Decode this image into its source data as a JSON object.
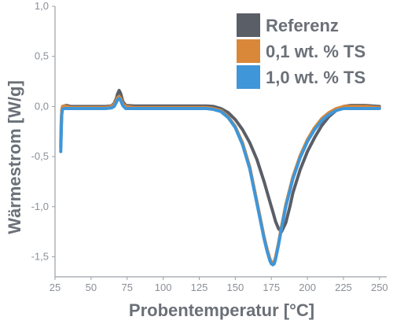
{
  "chart_data": {
    "type": "line",
    "xlabel": "Probentemperatur [°C]",
    "ylabel": "Wärmestrom [W/g]",
    "xlim": [
      25,
      255
    ],
    "ylim": [
      -1.7,
      1.0
    ],
    "xticks": [
      25,
      50,
      75,
      100,
      125,
      150,
      175,
      200,
      225,
      250
    ],
    "xtick_labels": [
      "25",
      "50",
      "75",
      "100",
      "125",
      "150",
      "175",
      "200",
      "225",
      "250"
    ],
    "yticks": [
      1.0,
      0.5,
      0.0,
      -0.5,
      -1.0,
      -1.5
    ],
    "ytick_labels": [
      "1,0",
      "0,5",
      "0,0",
      "-0,5",
      "-1,0",
      "-1,5"
    ],
    "grid": false,
    "legend_position": "top-right",
    "series": [
      {
        "name": "Referenz",
        "color": "#5a5e66",
        "x": [
          29,
          29.3,
          29.7,
          30.2,
          31,
          33,
          36,
          40,
          50,
          60,
          64,
          66,
          67.5,
          68.5,
          69.5,
          70.5,
          72,
          74,
          80,
          100,
          120,
          130,
          135,
          140,
          145,
          150,
          155,
          160,
          165,
          170,
          173,
          176,
          178,
          180,
          182,
          185,
          188,
          190,
          195,
          200,
          205,
          210,
          215,
          220,
          225,
          230,
          240,
          250
        ],
        "y": [
          -0.4,
          -0.2,
          -0.05,
          0.0,
          0.005,
          0.01,
          0.0,
          0.0,
          0.0,
          0.0,
          0.005,
          0.03,
          0.08,
          0.13,
          0.16,
          0.13,
          0.05,
          0.01,
          0.005,
          0.005,
          0.005,
          0.005,
          0.0,
          -0.02,
          -0.06,
          -0.13,
          -0.23,
          -0.36,
          -0.53,
          -0.75,
          -0.9,
          -1.05,
          -1.15,
          -1.22,
          -1.25,
          -1.16,
          -0.99,
          -0.86,
          -0.63,
          -0.45,
          -0.31,
          -0.19,
          -0.1,
          -0.04,
          0.0,
          0.01,
          0.01,
          0.0
        ]
      },
      {
        "name": "0,1 wt. % TS",
        "color": "#d9883a",
        "x": [
          29,
          29.3,
          29.7,
          30.2,
          31,
          33,
          36,
          40,
          50,
          60,
          64,
          66,
          67.5,
          68.5,
          69.5,
          70.5,
          72,
          74,
          80,
          100,
          120,
          130,
          135,
          140,
          145,
          150,
          155,
          160,
          165,
          170,
          172,
          174,
          175,
          176,
          177,
          178,
          180,
          182,
          185,
          190,
          195,
          200,
          205,
          210,
          215,
          220,
          225,
          230,
          240,
          250
        ],
        "y": [
          -0.35,
          -0.15,
          -0.03,
          0.0,
          0.005,
          0.0,
          -0.01,
          -0.01,
          -0.01,
          -0.01,
          0.0,
          0.02,
          0.06,
          0.09,
          0.1,
          0.08,
          0.03,
          0.0,
          -0.01,
          -0.01,
          -0.01,
          -0.01,
          -0.02,
          -0.04,
          -0.1,
          -0.2,
          -0.36,
          -0.6,
          -0.95,
          -1.3,
          -1.42,
          -1.52,
          -1.55,
          -1.56,
          -1.55,
          -1.5,
          -1.36,
          -1.2,
          -0.98,
          -0.7,
          -0.49,
          -0.33,
          -0.21,
          -0.12,
          -0.06,
          -0.02,
          0.0,
          0.0,
          0.0,
          -0.01
        ]
      },
      {
        "name": "1,0 wt. % TS",
        "color": "#3f96d8",
        "x": [
          29,
          29.3,
          29.7,
          30.2,
          31,
          33,
          36,
          40,
          50,
          60,
          64,
          66,
          67.5,
          68.5,
          69.5,
          70.5,
          72,
          74,
          80,
          100,
          120,
          130,
          135,
          140,
          145,
          150,
          155,
          160,
          165,
          170,
          172,
          174,
          175,
          176,
          177,
          178,
          180,
          182,
          185,
          190,
          195,
          200,
          205,
          210,
          215,
          220,
          225,
          230,
          240,
          250
        ],
        "y": [
          -0.45,
          -0.25,
          -0.08,
          -0.03,
          -0.02,
          -0.02,
          -0.02,
          -0.02,
          -0.02,
          -0.02,
          -0.015,
          0.0,
          0.04,
          0.07,
          0.08,
          0.06,
          0.01,
          -0.02,
          -0.02,
          -0.02,
          -0.02,
          -0.02,
          -0.03,
          -0.05,
          -0.11,
          -0.21,
          -0.38,
          -0.62,
          -0.97,
          -1.32,
          -1.44,
          -1.54,
          -1.57,
          -1.58,
          -1.57,
          -1.52,
          -1.38,
          -1.22,
          -1.0,
          -0.72,
          -0.51,
          -0.35,
          -0.23,
          -0.14,
          -0.08,
          -0.04,
          -0.02,
          -0.02,
          -0.02,
          -0.02
        ]
      }
    ]
  }
}
